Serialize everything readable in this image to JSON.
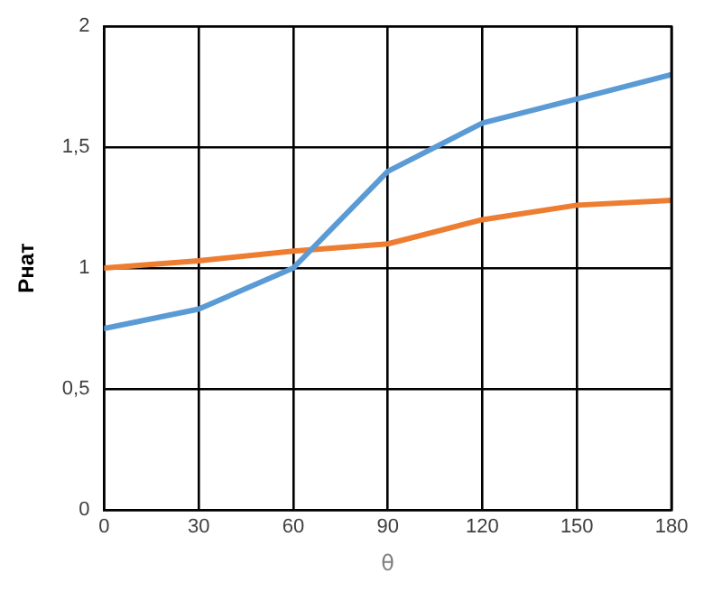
{
  "chart_data": {
    "type": "line",
    "xlabel": "θ",
    "ylabel": "Рнат",
    "x": [
      0,
      30,
      60,
      90,
      120,
      150,
      180
    ],
    "series": [
      {
        "color": "#5b9bd5",
        "values": [
          0.75,
          0.83,
          1.0,
          1.4,
          1.6,
          1.7,
          1.8
        ]
      },
      {
        "color": "#ed7d31",
        "values": [
          1.0,
          1.03,
          1.07,
          1.1,
          1.2,
          1.26,
          1.28
        ]
      }
    ],
    "xlim": [
      0,
      180
    ],
    "xticks": [
      0,
      30,
      60,
      90,
      120,
      150,
      180
    ],
    "ylim": [
      0,
      2
    ],
    "yticks": [
      0,
      {
        "value": 0.5,
        "label": "0,5"
      },
      1,
      {
        "value": 1.5,
        "label": "1,5"
      },
      2
    ],
    "grid": true,
    "legend": false,
    "marker": "none",
    "line_style": "solid"
  }
}
